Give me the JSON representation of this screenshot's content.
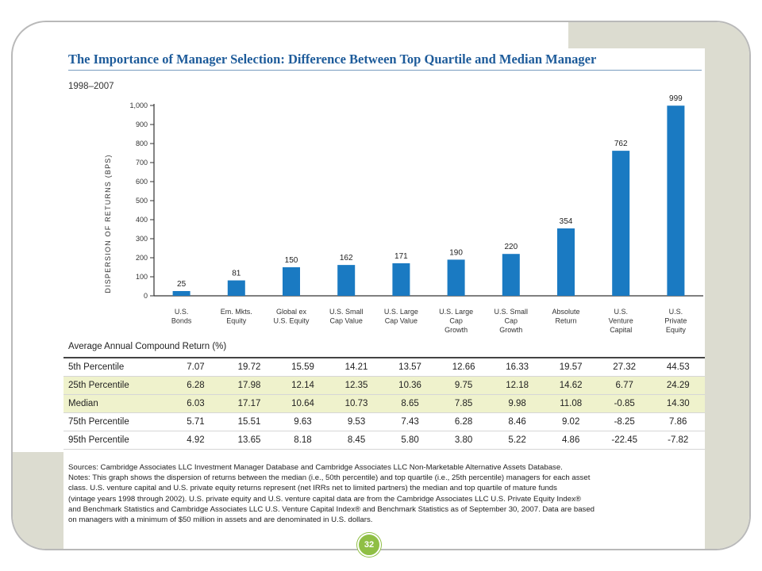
{
  "title": "The Importance of Manager Selection: Difference Between Top Quartile and Median Manager",
  "period": "1998–2007",
  "page_number": "32",
  "colors": {
    "bar": "#1a7ac2",
    "title": "#1d5b9a",
    "highlight_row": "#eff2cc",
    "badge": "#8fbf45"
  },
  "chart_data": {
    "type": "bar",
    "title": "The Importance of Manager Selection: Difference Between Top Quartile and Median Manager",
    "ylabel": "DISPERSION OF RETURNS (BPS)",
    "xlabel": "",
    "ylim": [
      0,
      1000
    ],
    "yticks": [
      "0",
      "100",
      "200",
      "300",
      "400",
      "500",
      "600",
      "700",
      "800",
      "900",
      "1,000"
    ],
    "grid": false,
    "categories": [
      [
        "U.S.",
        "Bonds"
      ],
      [
        "Em. Mkts.",
        "Equity"
      ],
      [
        "Global ex",
        "U.S. Equity"
      ],
      [
        "U.S. Small",
        "Cap Value"
      ],
      [
        "U.S. Large",
        "Cap Value"
      ],
      [
        "U.S. Large",
        "Cap",
        "Growth"
      ],
      [
        "U.S. Small",
        "Cap",
        "Growth"
      ],
      [
        "Absolute",
        "Return"
      ],
      [
        "U.S.",
        "Venture",
        "Capital"
      ],
      [
        "U.S.",
        "Private",
        "Equity"
      ]
    ],
    "values": [
      25,
      81,
      150,
      162,
      171,
      190,
      220,
      354,
      762,
      999
    ],
    "data_labels": [
      "25",
      "81",
      "150",
      "162",
      "171",
      "190",
      "220",
      "354",
      "762",
      "999"
    ]
  },
  "table": {
    "title": "Average Annual Compound Return (%)",
    "rows": [
      {
        "label": "5th Percentile",
        "values": [
          "7.07",
          "19.72",
          "15.59",
          "14.21",
          "13.57",
          "12.66",
          "16.33",
          "19.57",
          "27.32",
          "44.53"
        ]
      },
      {
        "label": "25th Percentile",
        "values": [
          "6.28",
          "17.98",
          "12.14",
          "12.35",
          "10.36",
          "9.75",
          "12.18",
          "14.62",
          "6.77",
          "24.29"
        ]
      },
      {
        "label": "Median",
        "values": [
          "6.03",
          "17.17",
          "10.64",
          "10.73",
          "8.65",
          "7.85",
          "9.98",
          "11.08",
          "-0.85",
          "14.30"
        ]
      },
      {
        "label": "75th Percentile",
        "values": [
          "5.71",
          "15.51",
          "9.63",
          "9.53",
          "7.43",
          "6.28",
          "8.46",
          "9.02",
          "-8.25",
          "7.86"
        ]
      },
      {
        "label": "95th Percentile",
        "values": [
          "4.92",
          "13.65",
          "8.18",
          "8.45",
          "5.80",
          "3.80",
          "5.22",
          "4.86",
          "-22.45",
          "-7.82"
        ]
      }
    ]
  },
  "sources_lines": [
    "Sources: Cambridge Associates LLC Investment Manager Database and Cambridge Associates LLC Non-Marketable Alternative Assets Database.",
    "Notes: This graph shows the dispersion of returns between the median (i.e., 50th percentile) and top quartile (i.e., 25th percentile) managers for each asset",
    "class. U.S. venture capital and U.S. private equity returns represent (net IRRs net to limited partners) the median and top quartile of mature funds",
    "(vintage years 1998 through 2002). U.S. private equity and U.S. venture capital data are from the Cambridge Associates LLC U.S. Private Equity Index®",
    "and Benchmark Statistics and Cambridge Associates LLC U.S. Venture Capital Index® and Benchmark Statistics as of September 30, 2007. Data are based",
    "on managers with a minimum of $50 million in assets and are denominated in U.S. dollars."
  ]
}
